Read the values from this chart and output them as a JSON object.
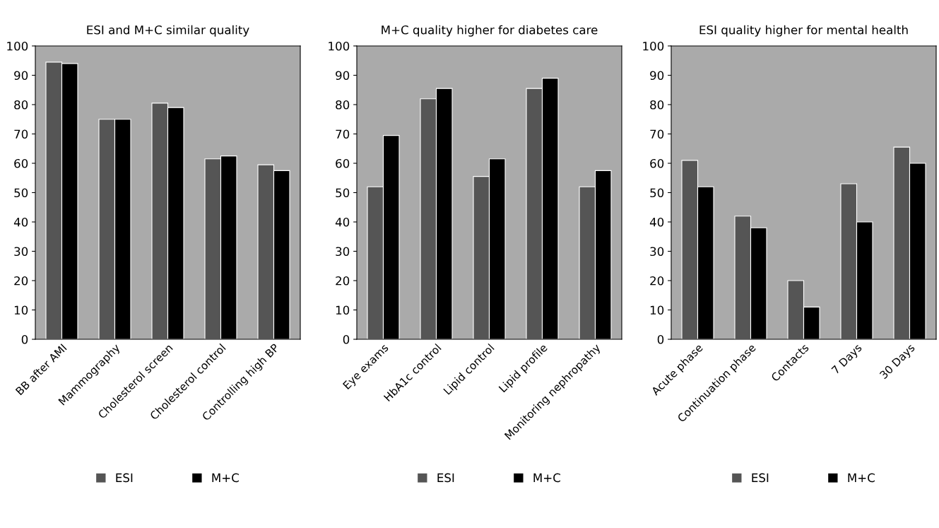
{
  "chart_data": [
    {
      "type": "bar",
      "title": "ESI and M+C similar quality",
      "categories": [
        "BB after AMI",
        "Mammography",
        "Cholesterol screen",
        "Cholesterol control",
        "Controlling high BP"
      ],
      "series": [
        {
          "name": "ESI",
          "color": "#555555",
          "values": [
            94.5,
            75,
            80.5,
            61.5,
            59.5
          ]
        },
        {
          "name": "M+C",
          "color": "#000000",
          "values": [
            94,
            75,
            79,
            62.5,
            57.5
          ]
        }
      ],
      "ylim": [
        0,
        100
      ],
      "yticks": [
        0,
        10,
        20,
        30,
        40,
        50,
        60,
        70,
        80,
        90,
        100
      ],
      "grid": false,
      "legend": "bottom"
    },
    {
      "type": "bar",
      "title": "M+C quality higher for diabetes care",
      "categories": [
        "Eye exams",
        "HbA1c control",
        "Lipid control",
        "Lipid profile",
        "Monitoring nephropathy"
      ],
      "series": [
        {
          "name": "ESI",
          "color": "#555555",
          "values": [
            52,
            82,
            55.5,
            85.5,
            52
          ]
        },
        {
          "name": "M+C",
          "color": "#000000",
          "values": [
            69.5,
            85.5,
            61.5,
            89,
            57.5
          ]
        }
      ],
      "ylim": [
        0,
        100
      ],
      "yticks": [
        0,
        10,
        20,
        30,
        40,
        50,
        60,
        70,
        80,
        90,
        100
      ],
      "grid": false,
      "legend": "bottom"
    },
    {
      "type": "bar",
      "title": "ESI quality higher for mental health",
      "categories": [
        "Acute phase",
        "Continuation phase",
        "Contacts",
        "7 Days",
        "30 Days"
      ],
      "series": [
        {
          "name": "ESI",
          "color": "#555555",
          "values": [
            61,
            42,
            20,
            53,
            65.5
          ]
        },
        {
          "name": "M+C",
          "color": "#000000",
          "values": [
            52,
            38,
            11,
            40,
            60
          ]
        }
      ],
      "ylim": [
        0,
        100
      ],
      "yticks": [
        0,
        10,
        20,
        30,
        40,
        50,
        60,
        70,
        80,
        90,
        100
      ],
      "grid": false,
      "legend": "bottom"
    }
  ]
}
